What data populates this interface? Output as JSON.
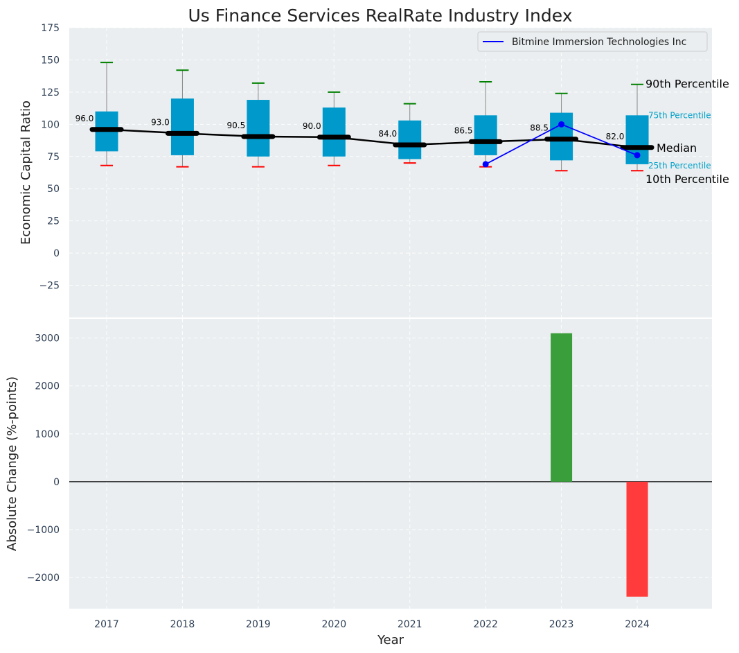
{
  "title": "Us Finance Services RealRate Industry Index",
  "chart_data": [
    {
      "type": "box",
      "ylabel": "Economic Capital Ratio",
      "ylim": [
        -50,
        175
      ],
      "yticks": [
        -25,
        0,
        25,
        50,
        75,
        100,
        125,
        150,
        175
      ],
      "grid": true,
      "categories": [
        "2017",
        "2018",
        "2019",
        "2020",
        "2021",
        "2022",
        "2023",
        "2024"
      ],
      "boxes": [
        {
          "year": "2017",
          "p10": 68,
          "p25": 79,
          "median": 96.0,
          "p75": 110,
          "p90": 148,
          "label": "96.0"
        },
        {
          "year": "2018",
          "p10": 67,
          "p25": 76,
          "median": 93.0,
          "p75": 120,
          "p90": 142,
          "label": "93.0"
        },
        {
          "year": "2019",
          "p10": 67,
          "p25": 75,
          "median": 90.5,
          "p75": 119,
          "p90": 132,
          "label": "90.5"
        },
        {
          "year": "2020",
          "p10": 68,
          "p25": 75,
          "median": 90.0,
          "p75": 113,
          "p90": 125,
          "label": "90.0"
        },
        {
          "year": "2021",
          "p10": 70,
          "p25": 73,
          "median": 84.0,
          "p75": 103,
          "p90": 116,
          "label": "84.0"
        },
        {
          "year": "2022",
          "p10": 67,
          "p25": 76,
          "median": 86.5,
          "p75": 107,
          "p90": 133,
          "label": "86.5"
        },
        {
          "year": "2023",
          "p10": 64,
          "p25": 72,
          "median": 88.5,
          "p75": 109,
          "p90": 124,
          "label": "88.5"
        },
        {
          "year": "2024",
          "p10": 64,
          "p25": 69,
          "median": 82.0,
          "p75": 107,
          "p90": 131,
          "label": "82.0"
        }
      ],
      "series": [
        {
          "name": "Bitmine Immersion Technologies Inc",
          "x": [
            "2022",
            "2023",
            "2024"
          ],
          "values": [
            69,
            100,
            76
          ],
          "color": "#0000ff"
        }
      ],
      "legend": "top-right",
      "annotations": {
        "p90": "90th Percentile",
        "p75": "75th Percentile",
        "median": "Median",
        "p25": "25th Percentile",
        "p10": "10th Percentile"
      },
      "colors": {
        "box": "#0099cc",
        "median": "#000000",
        "p90": "#008000",
        "p10": "#ff0000",
        "background": "#eaeef0",
        "percentile_text": "#00a0c8"
      }
    },
    {
      "type": "bar",
      "xlabel": "Year",
      "ylabel": "Absolute Change (%-points)",
      "ylim": [
        -2650,
        3400
      ],
      "yticks": [
        -2000,
        -1000,
        0,
        1000,
        2000,
        3000
      ],
      "grid": true,
      "categories": [
        "2017",
        "2018",
        "2019",
        "2020",
        "2021",
        "2022",
        "2023",
        "2024"
      ],
      "values": [
        null,
        null,
        null,
        null,
        null,
        null,
        3100,
        -2400
      ],
      "colors": {
        "positive": "#3a9e3a",
        "negative": "#ff3b3b"
      }
    }
  ]
}
